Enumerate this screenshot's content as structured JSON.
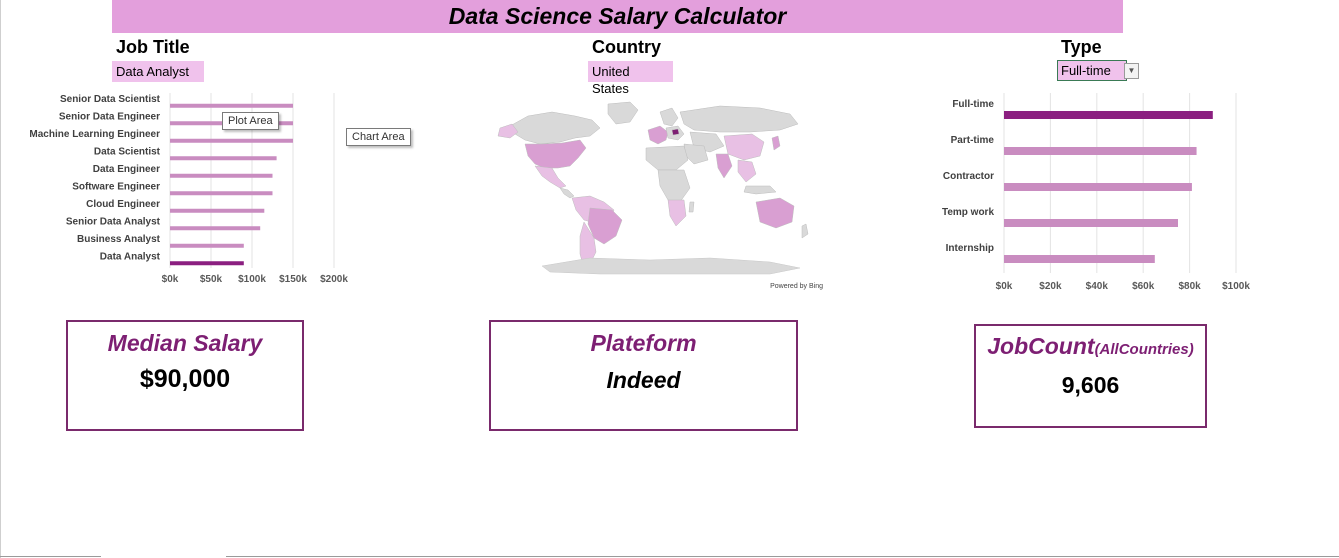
{
  "dashboard": {
    "title": "Data Science Salary Calculator"
  },
  "filters": {
    "job_title_label": "Job Title",
    "job_title_value": "Data Analyst",
    "country_label": "Country",
    "country_value": "United States",
    "type_label": "Type",
    "type_value": "Full-time"
  },
  "tooltips": {
    "plot_area": "Plot Area",
    "chart_area": "Chart Area"
  },
  "map": {
    "credit": "Powered by Bing",
    "fill_color": "#d9d9d9",
    "highlight_light": "#e8c0e4",
    "highlight_mid": "#d99fd2",
    "highlight_dark": "#7d1f73"
  },
  "cards": {
    "median_salary_title": "Median Salary",
    "median_salary_value": "$90,000",
    "platform_title": "Plateform",
    "platform_value": "Indeed",
    "job_count_title": "JobCount",
    "job_count_subtitle": "(AllCountries)",
    "job_count_value": "9,606"
  },
  "colors": {
    "bar_normal": "#c98cc0",
    "bar_selected": "#8b1f80",
    "accent": "#7d1f73",
    "title_band": "#e39fdc"
  },
  "chart_data": [
    {
      "type": "bar",
      "orientation": "horizontal",
      "categories": [
        "Senior Data Scientist",
        "Senior Data Engineer",
        "Machine Learning Engineer",
        "Data Scientist",
        "Data Engineer",
        "Software Engineer",
        "Cloud Engineer",
        "Senior Data Analyst",
        "Business Analyst",
        "Data Analyst"
      ],
      "values": [
        150000,
        150000,
        150000,
        130000,
        125000,
        125000,
        115000,
        110000,
        90000,
        90000
      ],
      "highlight": "Data Analyst",
      "x_ticks": [
        "$0k",
        "$50k",
        "$100k",
        "$150k",
        "$200k"
      ],
      "xlim": [
        0,
        200000
      ],
      "grid": true
    },
    {
      "type": "bar",
      "orientation": "horizontal",
      "categories": [
        "Full-time",
        "Part-time",
        "Contractor",
        "Temp work",
        "Internship"
      ],
      "values": [
        90000,
        83000,
        81000,
        75000,
        65000
      ],
      "highlight": "Full-time",
      "x_ticks": [
        "$0k",
        "$20k",
        "$40k",
        "$60k",
        "$80k",
        "$100k"
      ],
      "xlim": [
        0,
        100000
      ],
      "grid": true
    }
  ]
}
